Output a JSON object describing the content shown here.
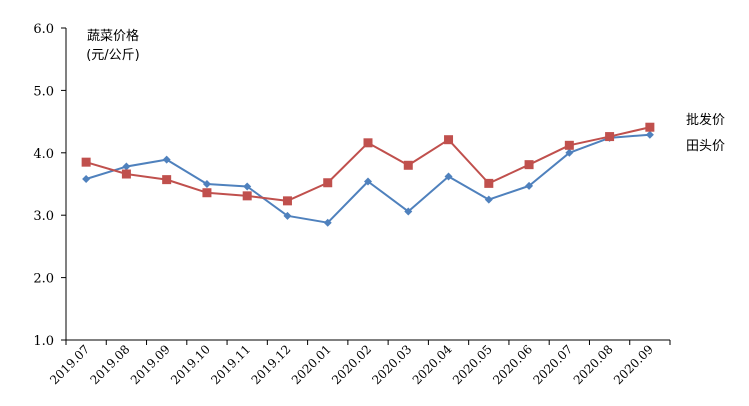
{
  "chart_data": {
    "type": "line",
    "title": "",
    "xlabel": "",
    "ylabel": "蔬菜价格",
    "ylabel_unit": "(元/公斤)",
    "ylim": [
      1.0,
      6.0
    ],
    "y_ticks": [
      "1.0",
      "2.0",
      "3.0",
      "4.0",
      "5.0",
      "6.0"
    ],
    "grid": false,
    "categories": [
      "2019.07",
      "2019.08",
      "2019.09",
      "2019.10",
      "2019.11",
      "2019.12",
      "2020.01",
      "2020.02",
      "2020.03",
      "2020.04",
      "2020.05",
      "2020.06",
      "2020.07",
      "2020.08",
      "2020.09"
    ],
    "series": [
      {
        "name": "批发价",
        "color": "#c0504d",
        "marker": "square",
        "values": [
          3.85,
          3.66,
          3.57,
          3.36,
          3.31,
          3.23,
          3.52,
          4.16,
          3.8,
          4.21,
          3.51,
          3.81,
          4.12,
          4.26,
          4.41
        ]
      },
      {
        "name": "田头价",
        "color": "#4f81bd",
        "marker": "diamond",
        "values": [
          3.58,
          3.78,
          3.89,
          3.5,
          3.46,
          2.99,
          2.88,
          3.54,
          3.06,
          3.62,
          3.25,
          3.47,
          4.0,
          4.24,
          4.29
        ]
      }
    ]
  }
}
